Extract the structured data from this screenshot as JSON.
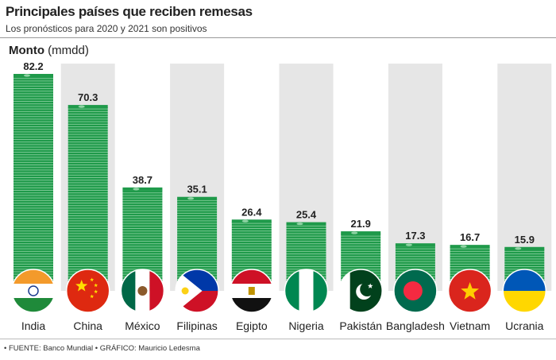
{
  "header": {
    "title": "Principales países que reciben remesas",
    "subtitle": "Los pronósticos para 2020 y 2021 son positivos"
  },
  "axis": {
    "label_bold": "Monto",
    "label_unit": "(mmdd)"
  },
  "footer": {
    "source": "• FUENTE: Banco Mundial • GRÁFICO: Mauricio Ledesma"
  },
  "colors": {
    "bar": "#1f9a4a",
    "bar_line": "#8fd3a4",
    "column_bg": "#e6e6e6"
  },
  "chart_data": {
    "type": "bar",
    "title": "Principales países que reciben remesas",
    "subtitle": "Los pronósticos para 2020 y 2021 son positivos",
    "ylabel": "Monto (mmdd)",
    "categories": [
      "India",
      "China",
      "México",
      "Filipinas",
      "Egipto",
      "Nigeria",
      "Pakistán",
      "Bangladesh",
      "Vietnam",
      "Ucrania"
    ],
    "values": [
      82.2,
      70.3,
      38.7,
      35.1,
      26.4,
      25.4,
      21.9,
      17.3,
      16.7,
      15.9
    ],
    "value_labels": [
      "82.2",
      "70.3",
      "38.7",
      "35.1",
      "26.4",
      "25.4",
      "21.9",
      "17.3",
      "16.7",
      "15.9"
    ],
    "flags": [
      "india-flag-icon",
      "china-flag-icon",
      "mexico-flag-icon",
      "philippines-flag-icon",
      "egypt-flag-icon",
      "nigeria-flag-icon",
      "pakistan-flag-icon",
      "bangladesh-flag-icon",
      "vietnam-flag-icon",
      "ukraine-flag-icon"
    ],
    "ylim": [
      0,
      82.2
    ],
    "grid": false,
    "legend": "none"
  }
}
